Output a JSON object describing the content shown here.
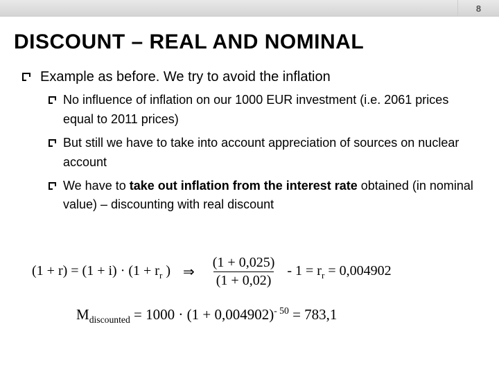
{
  "page_number": "8",
  "heading": "DISCOUNT – REAL AND NOMINAL",
  "bullet_main": "Example as before. We try to avoid the inflation",
  "sub_bullets": [
    "No influence of inflation on our 1000 EUR investment (i.e. 2061 prices equal to 2011 prices)",
    "But still we have to take into account appreciation of sources on nuclear account",
    {
      "pre": "We have to ",
      "bold": "take out inflation from the interest rate",
      "post": " obtained (in nominal value) – discounting with real discount"
    }
  ],
  "formula1": {
    "lhs": "(1 + r) = (1 + i) · (1 + r",
    "lhs_sub": "r",
    "lhs_close": " )",
    "arrow": "⇒",
    "frac_num": "(1 + 0,025)",
    "frac_den": "(1 + 0,02)",
    "tail": " - 1 = r",
    "tail_sub": "r",
    "tail2": " = 0,004902"
  },
  "formula2": {
    "m": "M",
    "m_sub": "discounted",
    "eq1": " = 1000 · (1 + 0,004902)",
    "exp": "- 50",
    "eq2": " = 783,1"
  }
}
